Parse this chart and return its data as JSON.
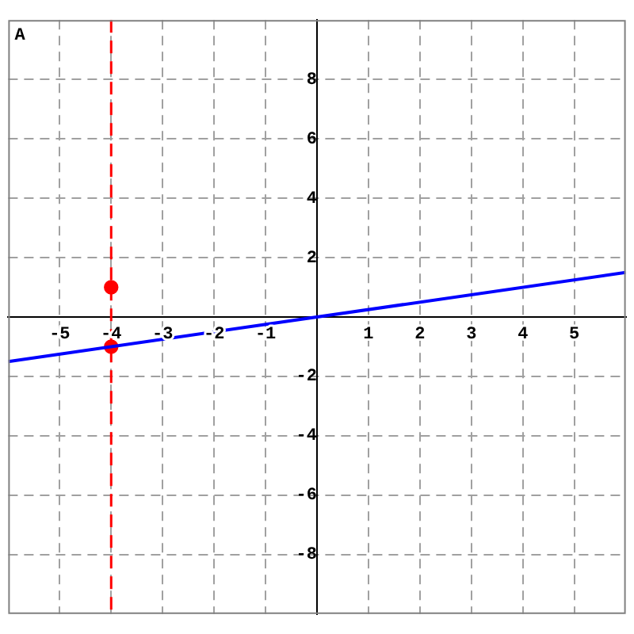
{
  "chart_data": {
    "type": "line",
    "series": [
      {
        "color": "#0000ff",
        "x": [
          -6,
          6
        ],
        "values": [
          -1.5,
          1.5
        ],
        "marker": "none"
      },
      {
        "type": "scatter",
        "color": "#ff0000",
        "x": [
          -4,
          -4
        ],
        "values": [
          1,
          -1
        ],
        "marker": "circle"
      }
    ],
    "xlim": [
      -6,
      6
    ],
    "ylim": [
      -10,
      10
    ],
    "xticks": [
      -5,
      -4,
      -3,
      -2,
      -1,
      {
        "value": 0,
        "label": null
      },
      1,
      2,
      3,
      4,
      5
    ],
    "yticks": [
      -8,
      -6,
      -4,
      -2,
      {
        "value": 0,
        "label": null
      },
      2,
      4,
      6,
      8
    ],
    "grid": true,
    "legend": false,
    "ref_lines": [
      {
        "axis": "x",
        "value": -4,
        "color": "#ff0000",
        "line_style": "dashed"
      }
    ],
    "annotations": [
      "A"
    ]
  }
}
